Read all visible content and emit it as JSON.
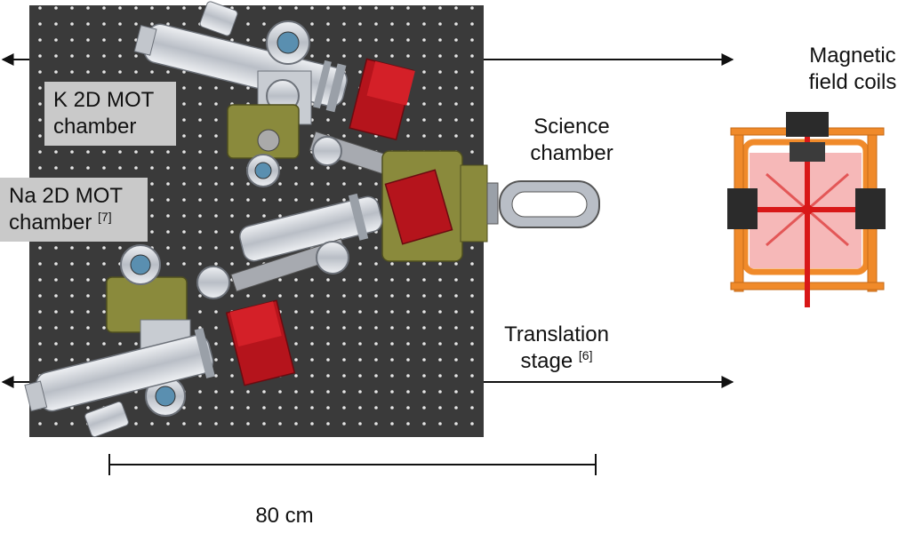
{
  "labels": {
    "k_mot": {
      "line1": "K 2D MOT",
      "line2": "chamber"
    },
    "na_mot": {
      "line1": "Na 2D MOT",
      "line2": "chamber",
      "ref": "[7]"
    },
    "science": {
      "line1": "Science",
      "line2": "chamber"
    },
    "coils": {
      "line1": "Magnetic",
      "line2": "field coils"
    },
    "stage": {
      "line1": "Translation",
      "line2": "stage",
      "ref": "[6]"
    },
    "scale": "80 cm"
  },
  "colors": {
    "breadboard": "#3a3a3a",
    "steel": "#c8ccd2",
    "olive": "#8a8a3c",
    "red_magnet": "#b5141c",
    "coil_orange": "#f08a2a",
    "coil_pink": "#f6b8b8",
    "beam_red": "#d81818"
  }
}
